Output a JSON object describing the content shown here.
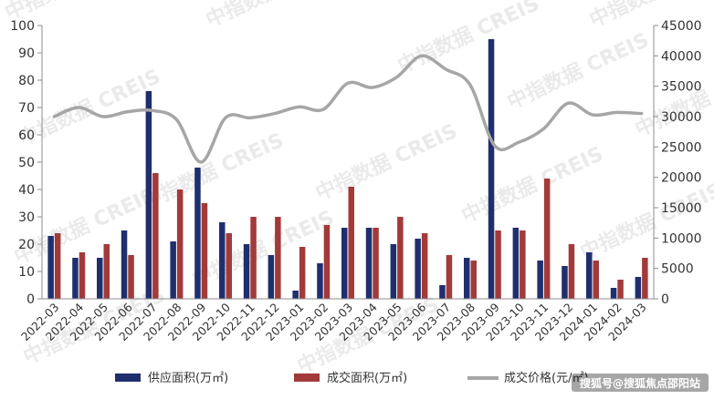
{
  "chart_data": {
    "type": "bar",
    "categories": [
      "2022-03",
      "2022-04",
      "2022-05",
      "2022-06",
      "2022-07",
      "2022-08",
      "2022-09",
      "2022-10",
      "2022-11",
      "2022-12",
      "2023-01",
      "2023-02",
      "2023-03",
      "2023-04",
      "2023-05",
      "2023-06",
      "2023-07",
      "2023-08",
      "2023-09",
      "2023-10",
      "2023-11",
      "2023-12",
      "2024-01",
      "2024-02",
      "2024-03"
    ],
    "series": [
      {
        "name": "供应面积(万㎡)",
        "type": "bar",
        "axis": "left",
        "color": "#1f2f6e",
        "values": [
          23,
          15,
          15,
          25,
          76,
          21,
          48,
          28,
          20,
          16,
          3,
          13,
          26,
          26,
          20,
          22,
          5,
          15,
          95,
          26,
          14,
          12,
          17,
          4,
          8
        ]
      },
      {
        "name": "成交面积(万㎡)",
        "type": "bar",
        "axis": "left",
        "color": "#a33a3a",
        "values": [
          24,
          17,
          20,
          16,
          46,
          40,
          35,
          24,
          30,
          30,
          19,
          27,
          41,
          26,
          30,
          24,
          16,
          14,
          25,
          25,
          44,
          20,
          14,
          7,
          15
        ]
      },
      {
        "name": "成交价格(元/㎡)",
        "type": "line",
        "axis": "right",
        "color": "#a6a6a6",
        "values": [
          30000,
          31500,
          30000,
          30800,
          31000,
          29500,
          22500,
          29800,
          29800,
          30500,
          31600,
          31200,
          35500,
          34800,
          36500,
          40000,
          37800,
          35200,
          25200,
          25800,
          28000,
          32200,
          30300,
          30700,
          30500
        ]
      }
    ],
    "ylim_left": [
      0,
      100
    ],
    "yticks_left": [
      "0",
      "10",
      "20",
      "30",
      "40",
      "50",
      "60",
      "70",
      "80",
      "90",
      "100"
    ],
    "ylim_right": [
      0,
      45000
    ],
    "yticks_right": [
      "0",
      "5000",
      "10000",
      "15000",
      "20000",
      "25000",
      "30000",
      "35000",
      "40000",
      "45000"
    ],
    "legend_position": "bottom",
    "grid": false
  },
  "legend_labels": [
    "供应面积(万㎡)",
    "成交面积(万㎡)",
    "成交价格(元/㎡)"
  ],
  "watermark_text": "中指数据 CREIS",
  "credit_text": "搜狐号@搜狐焦点邵阳站"
}
